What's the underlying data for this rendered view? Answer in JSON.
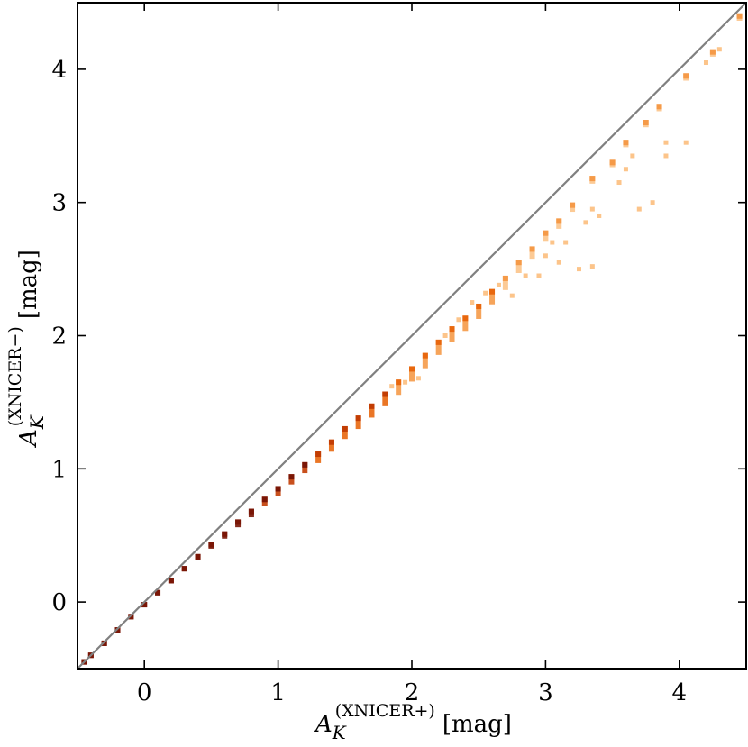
{
  "chart_data": {
    "type": "scatter",
    "title": "",
    "xlabel": {
      "symbol": "A",
      "subscript": "K",
      "superscript": "(XNICER+)",
      "unit": "[mag]"
    },
    "ylabel": {
      "symbol": "A",
      "subscript": "K",
      "superscript": "(XNICER−)",
      "unit": "[mag]"
    },
    "xlim": [
      -0.5,
      4.5
    ],
    "ylim": [
      -0.5,
      4.5
    ],
    "xticks": [
      0,
      1,
      2,
      3,
      4
    ],
    "yticks": [
      0,
      1,
      2,
      3,
      4
    ],
    "xtick_labels": [
      "0",
      "1",
      "2",
      "3",
      "4"
    ],
    "ytick_labels": [
      "0",
      "1",
      "2",
      "3",
      "4"
    ],
    "grid": false,
    "reference_line": {
      "x": [
        -0.5,
        4.5
      ],
      "y": [
        -0.5,
        4.5
      ],
      "color": "#808080"
    },
    "density_colormap": [
      "#fcc48a",
      "#f59a48",
      "#e8670e",
      "#c23d04",
      "#7a1606"
    ],
    "series": [
      {
        "style": "density",
        "points": [
          [
            -0.45,
            -0.45
          ],
          [
            -0.4,
            -0.4
          ],
          [
            -0.3,
            -0.31
          ],
          [
            -0.2,
            -0.21
          ],
          [
            -0.1,
            -0.11
          ],
          [
            0.0,
            -0.02
          ],
          [
            0.1,
            0.07
          ],
          [
            0.2,
            0.16
          ],
          [
            0.3,
            0.25
          ],
          [
            0.4,
            0.34
          ],
          [
            0.5,
            0.43
          ],
          [
            0.6,
            0.51
          ],
          [
            0.7,
            0.6
          ],
          [
            0.8,
            0.68
          ],
          [
            0.9,
            0.77
          ],
          [
            1.0,
            0.85
          ],
          [
            1.1,
            0.94
          ],
          [
            1.2,
            1.03
          ],
          [
            1.3,
            1.11
          ],
          [
            1.4,
            1.2
          ],
          [
            1.5,
            1.3
          ],
          [
            1.6,
            1.38
          ],
          [
            1.7,
            1.47
          ],
          [
            1.8,
            1.56
          ],
          [
            1.9,
            1.65
          ],
          [
            2.0,
            1.75
          ],
          [
            2.1,
            1.85
          ],
          [
            2.2,
            1.95
          ],
          [
            2.3,
            2.05
          ],
          [
            2.4,
            2.13
          ],
          [
            2.5,
            2.22
          ],
          [
            2.6,
            2.33
          ],
          [
            2.7,
            2.43
          ],
          [
            2.8,
            2.55
          ],
          [
            2.9,
            2.65
          ],
          [
            3.0,
            2.77
          ],
          [
            3.1,
            2.86
          ],
          [
            3.2,
            2.98
          ],
          [
            3.35,
            3.18
          ],
          [
            3.5,
            3.3
          ],
          [
            3.6,
            3.45
          ],
          [
            3.75,
            3.6
          ],
          [
            3.85,
            3.72
          ],
          [
            4.05,
            3.95
          ],
          [
            4.25,
            4.13
          ],
          [
            4.45,
            4.4
          ]
        ]
      },
      {
        "style": "outliers",
        "points": [
          [
            2.65,
            2.38
          ],
          [
            2.75,
            2.3
          ],
          [
            2.85,
            2.45
          ],
          [
            3.0,
            2.6
          ],
          [
            3.1,
            2.55
          ],
          [
            3.25,
            2.5
          ],
          [
            3.35,
            2.52
          ],
          [
            3.15,
            2.7
          ],
          [
            3.3,
            2.85
          ],
          [
            3.35,
            2.95
          ],
          [
            3.4,
            2.9
          ],
          [
            3.05,
            2.7
          ],
          [
            3.6,
            3.25
          ],
          [
            3.7,
            2.95
          ],
          [
            3.8,
            3.0
          ],
          [
            3.9,
            3.35
          ],
          [
            4.05,
            3.45
          ],
          [
            3.9,
            3.45
          ],
          [
            4.2,
            4.05
          ],
          [
            4.3,
            4.15
          ],
          [
            3.65,
            3.35
          ],
          [
            3.55,
            3.15
          ],
          [
            2.95,
            2.45
          ],
          [
            2.55,
            2.32
          ],
          [
            2.45,
            2.25
          ],
          [
            2.35,
            2.12
          ],
          [
            2.05,
            1.68
          ],
          [
            1.95,
            1.65
          ],
          [
            1.85,
            1.62
          ],
          [
            2.25,
            2.0
          ]
        ]
      }
    ]
  }
}
